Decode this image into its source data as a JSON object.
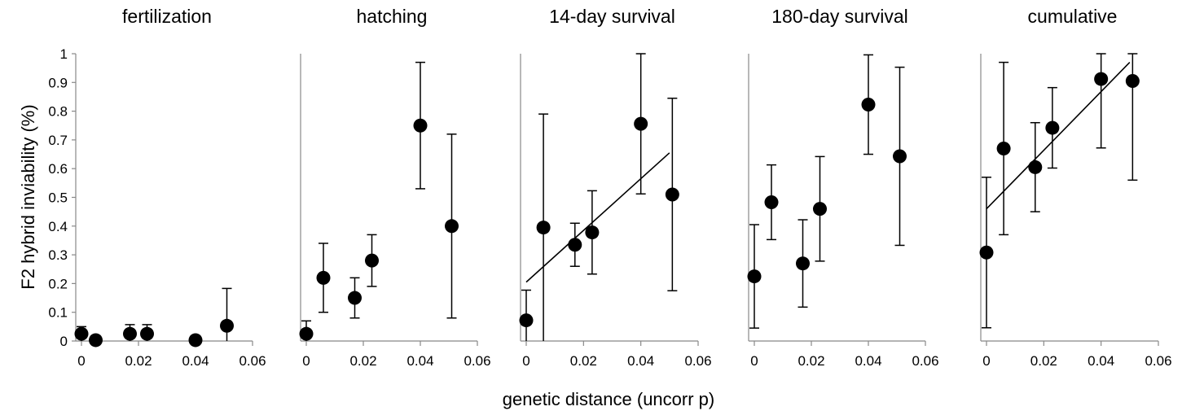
{
  "ylabel": "F2 hybrid inviability (%)",
  "xlabel": "genetic distance (uncorr p)",
  "colors": {
    "marker": "#000000",
    "axis": "#888888",
    "text": "#000000"
  },
  "chart_data": [
    {
      "type": "scatter",
      "title": "fertilization",
      "xlim": [
        0,
        0.06
      ],
      "ylim": [
        0,
        1
      ],
      "x_ticks": [
        "0",
        "0.02",
        "0.04",
        "0.06"
      ],
      "y_ticks": [
        "0",
        "0.1",
        "0.2",
        "0.3",
        "0.4",
        "0.5",
        "0.6",
        "0.7",
        "0.8",
        "0.9",
        "1"
      ],
      "points": [
        {
          "x": 0.0,
          "y": 0.025,
          "err": 0.025
        },
        {
          "x": 0.005,
          "y": 0.003,
          "err": 0
        },
        {
          "x": 0.017,
          "y": 0.025,
          "err": 0.032
        },
        {
          "x": 0.023,
          "y": 0.025,
          "err": 0.032
        },
        {
          "x": 0.04,
          "y": 0.003,
          "err": 0
        },
        {
          "x": 0.051,
          "y": 0.053,
          "err": 0.13
        }
      ],
      "trendline": null
    },
    {
      "type": "scatter",
      "title": "hatching",
      "xlim": [
        0,
        0.06
      ],
      "ylim": [
        0,
        1
      ],
      "x_ticks": [
        "0",
        "0.02",
        "0.04",
        "0.06"
      ],
      "points": [
        {
          "x": 0.0,
          "y": 0.025,
          "err": 0.045
        },
        {
          "x": 0.006,
          "y": 0.22,
          "err": 0.12
        },
        {
          "x": 0.017,
          "y": 0.15,
          "err": 0.07
        },
        {
          "x": 0.023,
          "y": 0.28,
          "err": 0.09
        },
        {
          "x": 0.04,
          "y": 0.75,
          "err": 0.22
        },
        {
          "x": 0.051,
          "y": 0.4,
          "err": 0.32
        }
      ],
      "trendline": null
    },
    {
      "type": "scatter",
      "title": "14-day survival",
      "xlim": [
        0,
        0.06
      ],
      "ylim": [
        0,
        1
      ],
      "x_ticks": [
        "0",
        "0.02",
        "0.04",
        "0.06"
      ],
      "points": [
        {
          "x": 0.0,
          "y": 0.072,
          "err": 0.105
        },
        {
          "x": 0.006,
          "y": 0.395,
          "err": 0.395
        },
        {
          "x": 0.017,
          "y": 0.335,
          "err": 0.075
        },
        {
          "x": 0.023,
          "y": 0.378,
          "err": 0.145
        },
        {
          "x": 0.04,
          "y": 0.756,
          "err": 0.244
        },
        {
          "x": 0.051,
          "y": 0.51,
          "err": 0.335
        }
      ],
      "trendline": {
        "x": [
          0,
          0.05
        ],
        "y": [
          0.205,
          0.655
        ]
      }
    },
    {
      "type": "scatter",
      "title": "180-day survival",
      "xlim": [
        0,
        0.06
      ],
      "ylim": [
        0,
        1
      ],
      "x_ticks": [
        "0",
        "0.02",
        "0.04",
        "0.06"
      ],
      "points": [
        {
          "x": 0.0,
          "y": 0.225,
          "err": 0.18
        },
        {
          "x": 0.006,
          "y": 0.483,
          "err": 0.13
        },
        {
          "x": 0.017,
          "y": 0.27,
          "err": 0.152
        },
        {
          "x": 0.023,
          "y": 0.46,
          "err": 0.182
        },
        {
          "x": 0.04,
          "y": 0.823,
          "err": 0.173
        },
        {
          "x": 0.051,
          "y": 0.643,
          "err": 0.31
        }
      ],
      "trendline": null
    },
    {
      "type": "scatter",
      "title": "cumulative",
      "xlim": [
        0,
        0.06
      ],
      "ylim": [
        0,
        1
      ],
      "x_ticks": [
        "0",
        "0.02",
        "0.04",
        "0.06"
      ],
      "points": [
        {
          "x": 0.0,
          "y": 0.308,
          "err": 0.262
        },
        {
          "x": 0.006,
          "y": 0.67,
          "err": 0.3
        },
        {
          "x": 0.017,
          "y": 0.605,
          "err": 0.155
        },
        {
          "x": 0.023,
          "y": 0.742,
          "err": 0.14
        },
        {
          "x": 0.04,
          "y": 0.912,
          "err": 0.24
        },
        {
          "x": 0.051,
          "y": 0.905,
          "err": 0.345
        }
      ],
      "trendline": {
        "x": [
          0,
          0.05
        ],
        "y": [
          0.46,
          0.97
        ]
      }
    }
  ]
}
